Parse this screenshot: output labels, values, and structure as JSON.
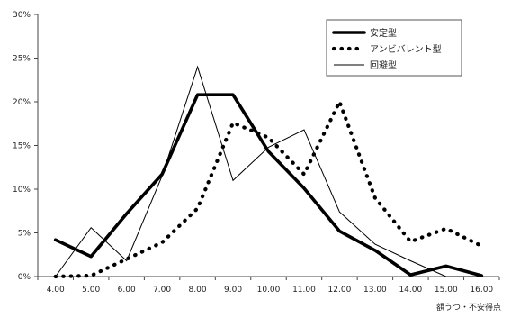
{
  "chart_data": {
    "type": "line",
    "title": "",
    "xlabel": "",
    "ylabel": "",
    "x_note": "額うつ・不安得点",
    "categories": [
      "4.00",
      "5.00",
      "6.00",
      "7.00",
      "8.00",
      "9.00",
      "10.00",
      "11.00",
      "12.00",
      "13.00",
      "14.00",
      "15.00",
      "16.00"
    ],
    "y_ticks": [
      "0%",
      "5%",
      "10%",
      "15%",
      "20%",
      "25%",
      "30%"
    ],
    "ylim": [
      0,
      30
    ],
    "grid": false,
    "legend_position": "top-right",
    "series": [
      {
        "name": "安定型",
        "style": "thick-solid",
        "color": "#000000",
        "values": [
          4.2,
          2.3,
          7.2,
          11.7,
          20.8,
          20.8,
          14.3,
          10.1,
          5.2,
          3.0,
          0.2,
          1.2,
          0.1
        ]
      },
      {
        "name": "アンビバレント型",
        "style": "dotted",
        "color": "#000000",
        "values": [
          0.0,
          0.1,
          2.0,
          3.9,
          7.8,
          17.6,
          15.9,
          11.7,
          20.0,
          9.0,
          4.0,
          5.5,
          3.5
        ]
      },
      {
        "name": "回避型",
        "style": "thin-solid",
        "color": "#000000",
        "values": [
          0.0,
          5.6,
          1.8,
          11.5,
          24.0,
          11.0,
          14.8,
          16.8,
          7.4,
          3.7,
          1.8,
          0.0,
          0.0
        ]
      }
    ]
  }
}
